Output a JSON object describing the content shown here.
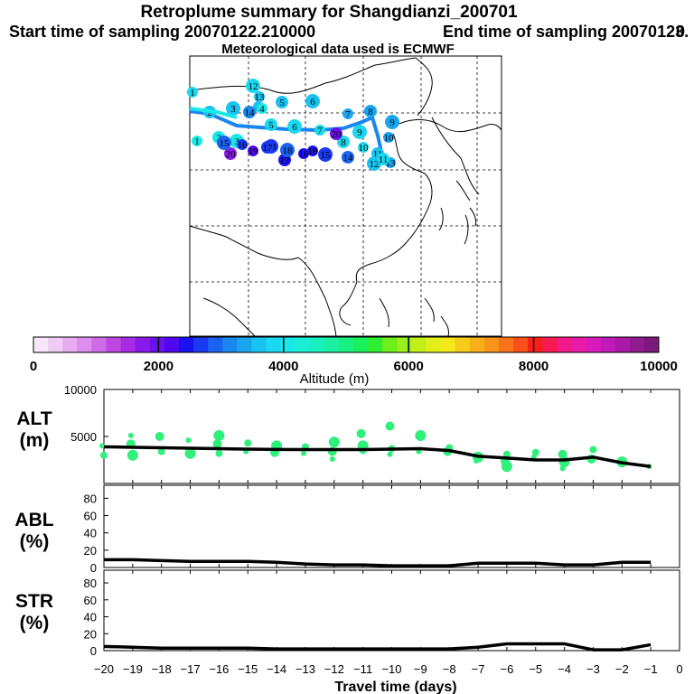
{
  "header": {
    "title": "Retroplume summary for Shangdianzi_200701",
    "start_label": "Start time of sampling 20070122.210000",
    "end_label": "End time of sampling 20070123.",
    "end_suffix": "0",
    "met_label": "Meteorological data used is ECMWF"
  },
  "colorbar": {
    "title": "Altitude (m)",
    "tick_labels": [
      "0",
      "2000",
      "4000",
      "6000",
      "8000",
      "10000"
    ],
    "colors": [
      "#f6e8f8",
      "#efccf5",
      "#e6acf0",
      "#dd8deb",
      "#cf6be6",
      "#bf48e2",
      "#a52be4",
      "#8a1ae9",
      "#6c10ed",
      "#5008f0",
      "#1a10f0",
      "#1a3aef",
      "#1a62ef",
      "#1a86ef",
      "#1aa6ef",
      "#1ac2ef",
      "#1ad8ef",
      "#1ae8e8",
      "#1aefd6",
      "#1aefc0",
      "#1aefa4",
      "#1aef84",
      "#1aef5e",
      "#2ef030",
      "#6cef1a",
      "#98ef1a",
      "#c0ef1a",
      "#e2ef1a",
      "#f4e81a",
      "#f6cc1a",
      "#f8b01a",
      "#f8941a",
      "#f8741a",
      "#f8501a",
      "#f8201a",
      "#f81a50",
      "#f21a86",
      "#e81aa6",
      "#d81abc",
      "#c01ab8",
      "#a81aa6",
      "#901a90",
      "#7a1a7a"
    ]
  },
  "map": {
    "trajectory_labels": [
      "20",
      "19",
      "18",
      "17",
      "16",
      "15",
      "14",
      "13",
      "12",
      "11",
      "10",
      "9",
      "8",
      "7",
      "6",
      "5",
      "4",
      "3",
      "2",
      "1"
    ]
  },
  "chart_data": [
    {
      "type": "line",
      "name": "ALT",
      "ylabel": "ALT\n(m)",
      "ylabel_lines": [
        "ALT",
        "(m)"
      ],
      "ylim": [
        0,
        10000
      ],
      "yticks": [
        "10000",
        "5000"
      ],
      "x": [
        -20,
        -19,
        -18,
        -17,
        -16,
        -15,
        -14,
        -13,
        -12,
        -11,
        -10,
        -9,
        -8,
        -7,
        -6,
        -5,
        -4,
        -3,
        -2,
        -1
      ],
      "values": [
        3900,
        3850,
        3800,
        3750,
        3700,
        3650,
        3620,
        3600,
        3600,
        3600,
        3650,
        3700,
        3500,
        2900,
        2700,
        2500,
        2500,
        2800,
        2200,
        1800
      ],
      "scatter_x": [
        -20,
        -20,
        -19,
        -19,
        -19,
        -18,
        -18,
        -17,
        -17,
        -16,
        -16,
        -16,
        -15,
        -15,
        -14,
        -14,
        -13,
        -13,
        -12,
        -12,
        -12,
        -11,
        -11,
        -11,
        -10,
        -10,
        -10,
        -9,
        -9,
        -8,
        -8,
        -7,
        -7,
        -6,
        -6,
        -6,
        -5,
        -5,
        -4,
        -4,
        -4,
        -3,
        -3,
        -2,
        -1
      ],
      "scatter_y": [
        4000,
        3000,
        4200,
        3000,
        5100,
        3400,
        5000,
        3200,
        4600,
        3200,
        4200,
        5100,
        3400,
        4300,
        3300,
        4000,
        3200,
        3900,
        3400,
        4400,
        2600,
        3500,
        5300,
        4000,
        3100,
        3700,
        6100,
        5100,
        3400,
        3800,
        3400,
        2800,
        2400,
        3100,
        2400,
        1800,
        2800,
        3300,
        3100,
        2300,
        1600,
        3600,
        2600,
        2300,
        1800
      ]
    },
    {
      "type": "line",
      "name": "ABL",
      "ylabel": "ABL\n(%)",
      "ylabel_lines": [
        "ABL",
        "(%)"
      ],
      "ylim": [
        0,
        95
      ],
      "yticks": [
        "80",
        "60",
        "40",
        "20",
        "0"
      ],
      "x": [
        -20,
        -19,
        -18,
        -17,
        -16,
        -15,
        -14,
        -13,
        -12,
        -11,
        -10,
        -9,
        -8,
        -7,
        -6,
        -5,
        -4,
        -3,
        -2,
        -1
      ],
      "values": [
        9,
        9,
        8,
        7,
        7,
        7,
        6,
        4,
        3,
        3,
        2,
        2,
        2,
        5,
        5,
        5,
        3,
        3,
        6,
        6
      ]
    },
    {
      "type": "line",
      "name": "STR",
      "ylabel": "STR\n(%)",
      "ylabel_lines": [
        "STR",
        "(%)"
      ],
      "ylim": [
        0,
        95
      ],
      "yticks": [
        "80",
        "60",
        "40",
        "20",
        "0"
      ],
      "x": [
        -20,
        -19,
        -18,
        -17,
        -16,
        -15,
        -14,
        -13,
        -12,
        -11,
        -10,
        -9,
        -8,
        -7,
        -6,
        -5,
        -4,
        -3,
        -2,
        -1
      ],
      "values": [
        5,
        4,
        3,
        3,
        3,
        3,
        2,
        2,
        2,
        2,
        2,
        2,
        2,
        4,
        8,
        8,
        8,
        1,
        1,
        7
      ],
      "xlabel": "Travel time (days)",
      "xticks": [
        "-20",
        "-19",
        "-18",
        "-17",
        "-16",
        "-15",
        "-14",
        "-13",
        "-12",
        "-11",
        "-10",
        "-9",
        "-8",
        "-7",
        "-6",
        "-5",
        "-4",
        "-3",
        "-2",
        "-1",
        "0"
      ],
      "xlim": [
        -20,
        0
      ]
    }
  ]
}
